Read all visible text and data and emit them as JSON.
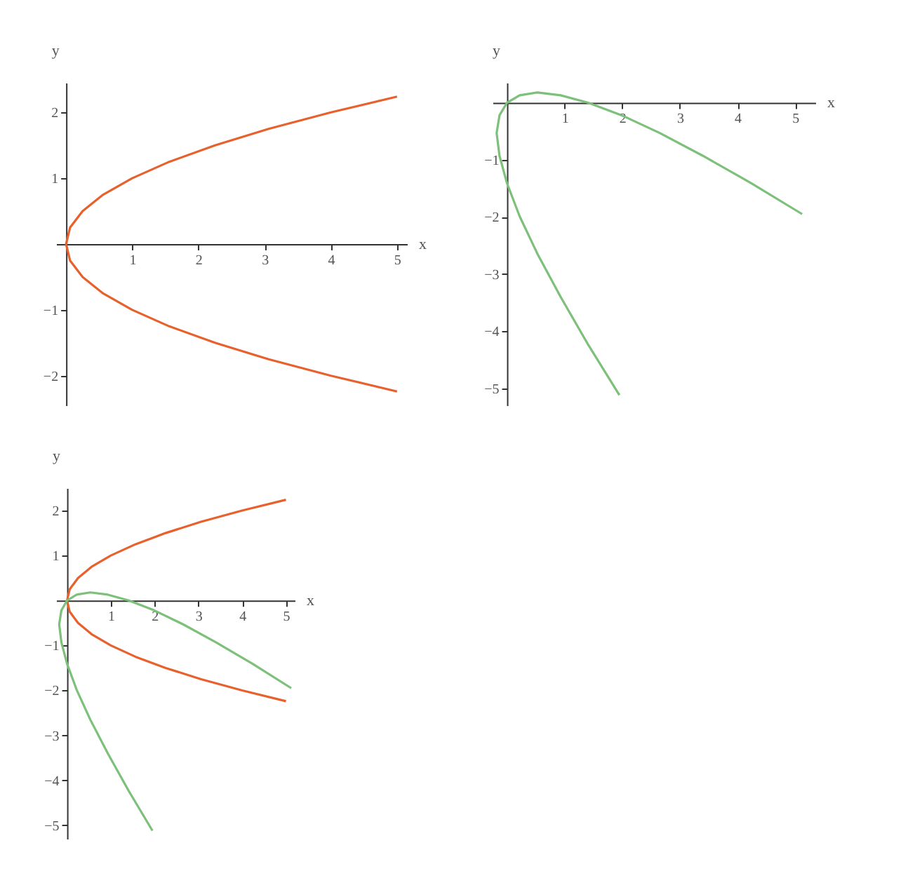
{
  "chart_data": [
    {
      "type": "line",
      "xlabel": "x",
      "ylabel": "y",
      "xlim": [
        -0.15,
        5.15
      ],
      "ylim": [
        -2.45,
        2.45
      ],
      "xticks": [
        1,
        2,
        3,
        4,
        5
      ],
      "yticks": [
        -2,
        -1,
        1,
        2
      ],
      "grid": false,
      "series": [
        {
          "color": "#e8602c",
          "x": [
            5,
            4,
            3.06,
            2.25,
            1.56,
            1,
            0.56,
            0.25,
            0.06,
            0,
            0.06,
            0.25,
            0.56,
            1,
            1.56,
            2.25,
            3.06,
            4,
            5
          ],
          "values": [
            -2.24,
            -2,
            -1.75,
            -1.5,
            -1.25,
            -1,
            -0.75,
            -0.5,
            -0.25,
            0,
            0.25,
            0.5,
            0.75,
            1,
            1.25,
            1.5,
            1.75,
            2,
            2.24
          ]
        }
      ]
    },
    {
      "type": "line",
      "xlabel": "x",
      "ylabel": "y",
      "xlim": [
        -0.25,
        5.35
      ],
      "ylim": [
        -5.3,
        0.35
      ],
      "xticks": [
        1,
        2,
        3,
        4,
        5
      ],
      "yticks": [
        -5,
        -4,
        -3,
        -2,
        -1
      ],
      "grid": false,
      "series": [
        {
          "color": "#7cc07a",
          "x": [
            1.95,
            1.41,
            0.93,
            0.53,
            0.22,
            0,
            -0.13,
            -0.18,
            -0.13,
            0,
            0.22,
            0.53,
            0.93,
            1.41,
            1.99,
            2.65,
            3.4,
            4.24,
            5.12
          ],
          "values": [
            -5.12,
            -4.24,
            -3.4,
            -2.65,
            -1.99,
            -1.41,
            -0.93,
            -0.53,
            -0.22,
            0,
            0.13,
            0.18,
            0.13,
            0,
            -0.22,
            -0.53,
            -0.93,
            -1.41,
            -1.95
          ]
        }
      ]
    },
    {
      "type": "line",
      "xlabel": "x",
      "ylabel": "y",
      "xlim": [
        -0.25,
        5.2
      ],
      "ylim": [
        -5.3,
        2.5
      ],
      "xticks": [
        1,
        2,
        3,
        4,
        5
      ],
      "yticks": [
        -5,
        -4,
        -3,
        -2,
        -1,
        1,
        2
      ],
      "grid": false,
      "series": [
        {
          "color": "#e8602c",
          "x": [
            5,
            4,
            3.06,
            2.25,
            1.56,
            1,
            0.56,
            0.25,
            0.06,
            0,
            0.06,
            0.25,
            0.56,
            1,
            1.56,
            2.25,
            3.06,
            4,
            5
          ],
          "values": [
            -2.24,
            -2,
            -1.75,
            -1.5,
            -1.25,
            -1,
            -0.75,
            -0.5,
            -0.25,
            0,
            0.25,
            0.5,
            0.75,
            1,
            1.25,
            1.5,
            1.75,
            2,
            2.24
          ]
        },
        {
          "color": "#7cc07a",
          "x": [
            1.95,
            1.41,
            0.93,
            0.53,
            0.22,
            0,
            -0.13,
            -0.18,
            -0.13,
            0,
            0.22,
            0.53,
            0.93,
            1.41,
            1.99,
            2.65,
            3.4,
            4.24,
            5.12
          ],
          "values": [
            -5.12,
            -4.24,
            -3.4,
            -2.65,
            -1.99,
            -1.41,
            -0.93,
            -0.53,
            -0.22,
            0,
            0.13,
            0.18,
            0.13,
            0,
            -0.22,
            -0.53,
            -0.93,
            -1.41,
            -1.95
          ]
        }
      ]
    }
  ]
}
